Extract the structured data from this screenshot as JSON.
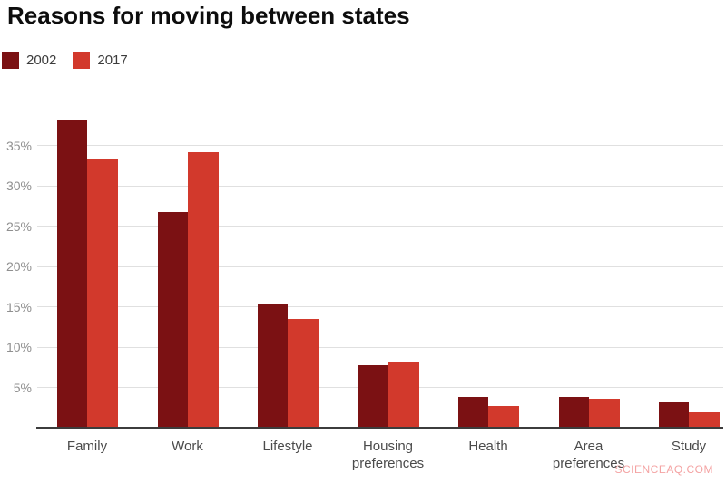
{
  "watermark": "SCIENCEAQ.COM",
  "chart_data": {
    "type": "bar",
    "title": "Reasons for moving between states",
    "categories": [
      "Family",
      "Work",
      "Lifestyle",
      "Housing preferences",
      "Health",
      "Area preferences",
      "Study"
    ],
    "series": [
      {
        "name": "2002",
        "color": "#7b1113",
        "values": [
          38.2,
          26.7,
          15.3,
          7.7,
          3.8,
          3.8,
          3.1
        ]
      },
      {
        "name": "2017",
        "color": "#d2392c",
        "values": [
          33.3,
          34.2,
          13.5,
          8.1,
          2.7,
          3.6,
          1.9
        ]
      }
    ],
    "xlabel": "",
    "ylabel": "",
    "ylim": [
      0,
      40
    ],
    "yticks": [
      5,
      10,
      15,
      20,
      25,
      30,
      35
    ],
    "ytick_suffix": "%",
    "grid": true,
    "legend_position": "top-left",
    "colors": {
      "gridline": "#e0e0e0",
      "axis_line": "#3c3c3c",
      "ytick_text": "#8f8f8f",
      "xtick_text": "#4b4b4b",
      "title_text": "#0d0d0d",
      "watermark_text": "#f4a3a3",
      "background": "#ffffff"
    }
  }
}
